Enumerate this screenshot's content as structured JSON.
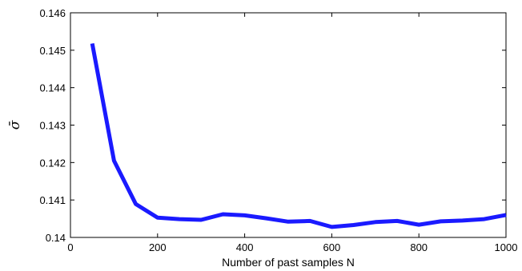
{
  "chart_data": {
    "type": "line",
    "title": "",
    "xlabel": "Number of past samples N",
    "ylabel": "σ̄",
    "xlim": [
      0,
      1000
    ],
    "ylim": [
      0.14,
      0.146
    ],
    "xticks": [
      "0",
      "200",
      "400",
      "600",
      "800",
      "1000"
    ],
    "xtick_values": [
      0,
      200,
      400,
      600,
      800,
      1000
    ],
    "yticks": [
      "0.14",
      "0.141",
      "0.142",
      "0.143",
      "0.144",
      "0.145",
      "0.146"
    ],
    "ytick_values": [
      0.14,
      0.141,
      0.142,
      0.143,
      0.144,
      0.145,
      0.146
    ],
    "grid": false,
    "series": [
      {
        "color": "#1a1aff",
        "x": [
          50,
          100,
          150,
          200,
          250,
          300,
          350,
          400,
          450,
          500,
          550,
          600,
          650,
          700,
          750,
          800,
          850,
          900,
          950,
          1000
        ],
        "y": [
          0.14518,
          0.14205,
          0.14089,
          0.14053,
          0.14049,
          0.14047,
          0.14062,
          0.14059,
          0.14051,
          0.14042,
          0.14044,
          0.14028,
          0.14033,
          0.14041,
          0.14044,
          0.14034,
          0.14043,
          0.14045,
          0.14049,
          0.1406
        ]
      }
    ]
  }
}
